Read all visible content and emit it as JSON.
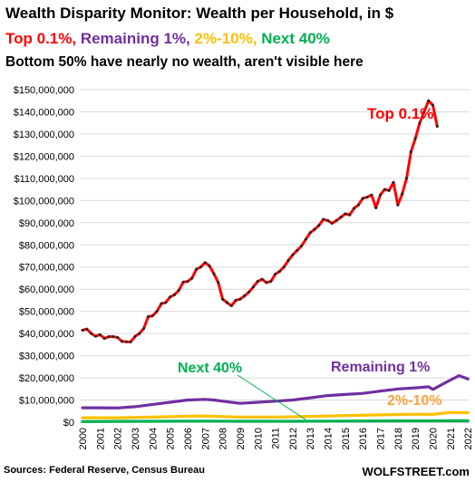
{
  "header": {
    "title": "Wealth Disparity Monitor: Wealth per Household, in $",
    "legend": [
      {
        "label": "Top 0.1%,",
        "color": "#ff0000"
      },
      {
        "label": "Remaining 1%,",
        "color": "#7030a0"
      },
      {
        "label": "2%-10%,",
        "color": "#ffc000"
      },
      {
        "label": "Next 40%",
        "color": "#00b050"
      }
    ],
    "subtitle": "Bottom 50% have nearly no wealth, aren't visible here"
  },
  "footer": {
    "source": "Sources: Federal Reserve, Census Bureau",
    "brand": "WOLFSTREET.com"
  },
  "chart_data": {
    "type": "line",
    "ylim": [
      0,
      150000000
    ],
    "xlim": [
      2000,
      2022.25
    ],
    "ytick_labels": [
      "$0",
      "$10,000,000",
      "$20,000,000",
      "$30,000,000",
      "$40,000,000",
      "$50,000,000",
      "$60,000,000",
      "$70,000,000",
      "$80,000,000",
      "$90,000,000",
      "$100,000,000",
      "$110,000,000",
      "$120,000,000",
      "$130,000,000",
      "$140,000,000",
      "$150,000,000"
    ],
    "xtick_labels": [
      "2000",
      "2001",
      "2002",
      "2003",
      "2004",
      "2005",
      "2006",
      "2007",
      "2008",
      "2009",
      "2010",
      "2011",
      "2012",
      "2013",
      "2014",
      "2015",
      "2016",
      "2017",
      "2018",
      "2019",
      "2020",
      "2021",
      "2022"
    ],
    "grid": true,
    "annotations": [
      {
        "text": "Top 0.1%",
        "color": "#ff0000",
        "series": "Top 0.1%"
      },
      {
        "text": "Remaining 1%",
        "color": "#7030a0",
        "series": "Remaining 1%"
      },
      {
        "text": "2%-10%",
        "color": "#ffa040",
        "series": "2%-10%"
      },
      {
        "text": "Next 40%",
        "color": "#00b050",
        "series": "Next 40%"
      }
    ],
    "series": [
      {
        "name": "Top 0.1%",
        "color": "#ff0000",
        "markers": true,
        "x": [
          2000.0,
          2000.25,
          2000.5,
          2000.75,
          2001.0,
          2001.25,
          2001.5,
          2001.75,
          2002.0,
          2002.25,
          2002.5,
          2002.75,
          2003.0,
          2003.25,
          2003.5,
          2003.75,
          2004.0,
          2004.25,
          2004.5,
          2004.75,
          2005.0,
          2005.25,
          2005.5,
          2005.75,
          2006.0,
          2006.25,
          2006.5,
          2006.75,
          2007.0,
          2007.25,
          2007.5,
          2007.75,
          2008.0,
          2008.25,
          2008.5,
          2008.75,
          2009.0,
          2009.25,
          2009.5,
          2009.75,
          2010.0,
          2010.25,
          2010.5,
          2010.75,
          2011.0,
          2011.25,
          2011.5,
          2011.75,
          2012.0,
          2012.25,
          2012.5,
          2012.75,
          2013.0,
          2013.25,
          2013.5,
          2013.75,
          2014.0,
          2014.25,
          2014.5,
          2014.75,
          2015.0,
          2015.25,
          2015.5,
          2015.75,
          2016.0,
          2016.25,
          2016.5,
          2016.75,
          2017.0,
          2017.25,
          2017.5,
          2017.75,
          2018.0,
          2018.25,
          2018.5,
          2018.75,
          2019.0,
          2019.25,
          2019.5,
          2019.75,
          2020.0,
          2020.25,
          2020.5,
          2020.75,
          2021.0,
          2021.25,
          2021.5,
          2021.75,
          2022.0,
          2022.25
        ],
        "values": [
          41500000,
          42000000,
          40000000,
          38800000,
          39500000,
          37800000,
          38600000,
          38600000,
          38200000,
          36500000,
          36300000,
          36200000,
          38700000,
          40000000,
          42300000,
          47600000,
          48000000,
          50000000,
          53500000,
          54000000,
          56500000,
          57500000,
          59500000,
          63200000,
          63500000,
          65000000,
          69000000,
          70000000,
          72000000,
          70500000,
          67000000,
          63000000,
          55500000,
          54000000,
          52500000,
          55000000,
          55500000,
          57000000,
          58700000,
          61000000,
          63500000,
          64500000,
          63000000,
          63500000,
          66800000,
          68000000,
          70000000,
          73000000,
          75500000,
          77500000,
          79500000,
          82500000,
          85500000,
          87000000,
          88800000,
          91500000,
          91000000,
          89700000,
          91000000,
          92500000,
          94000000,
          93500000,
          96500000,
          98000000,
          101000000,
          101500000,
          102500000,
          96700000,
          102500000,
          105000000,
          104500000,
          108200000,
          98000000,
          103000000,
          110000000,
          122000000,
          128000000,
          135000000,
          140000000,
          145000000,
          143000000,
          133500000,
          null,
          null,
          null,
          null,
          null,
          null,
          null,
          null
        ]
      },
      {
        "name": "Remaining 1%",
        "color": "#7030a0",
        "markers": false,
        "x": [
          2000,
          2001,
          2002,
          2003,
          2004,
          2005,
          2006,
          2007,
          2007.5,
          2008,
          2009,
          2010,
          2011,
          2012,
          2013,
          2014,
          2015,
          2016,
          2017,
          2018,
          2019,
          2019.75,
          2020,
          2021,
          2021.5,
          2022
        ],
        "values": [
          6500000,
          6500000,
          6400000,
          7000000,
          8000000,
          9000000,
          10000000,
          10300000,
          10000000,
          9500000,
          8500000,
          9000000,
          9500000,
          10000000,
          11000000,
          12000000,
          12500000,
          13000000,
          14000000,
          15000000,
          15500000,
          16000000,
          14800000,
          19000000,
          21000000,
          19500000
        ]
      },
      {
        "name": "2%-10%",
        "color": "#ffc000",
        "markers": false,
        "x": [
          2000,
          2002,
          2004,
          2006,
          2007,
          2009,
          2011,
          2013,
          2015,
          2017,
          2019,
          2020,
          2021,
          2022
        ],
        "values": [
          2000000,
          2000000,
          2300000,
          2700000,
          2800000,
          2300000,
          2300000,
          2600000,
          3000000,
          3300000,
          3600000,
          3500000,
          4400000,
          4300000
        ]
      },
      {
        "name": "Next 40%",
        "color": "#00b050",
        "markers": false,
        "x": [
          2000,
          2004,
          2007,
          2009,
          2012,
          2015,
          2018,
          2020,
          2021,
          2022
        ],
        "values": [
          300000,
          400000,
          500000,
          400000,
          400000,
          500000,
          600000,
          600000,
          700000,
          700000
        ]
      }
    ]
  }
}
